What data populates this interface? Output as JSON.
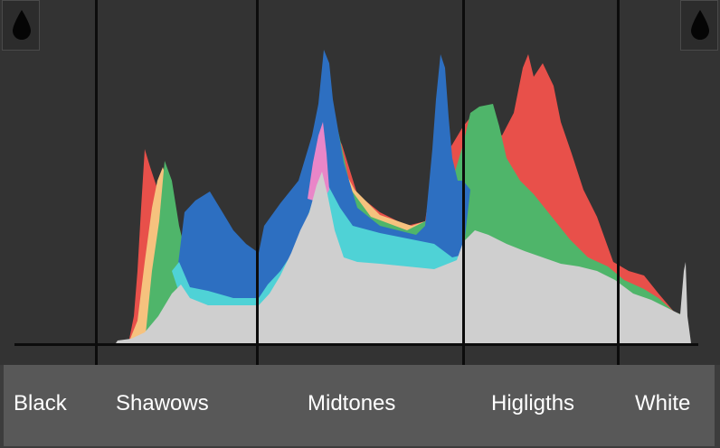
{
  "zones": {
    "black": "Black",
    "shadows": "Shawows",
    "midtones": "Midtones",
    "highlights": "Higligths",
    "white": "White"
  },
  "icons": {
    "left_clip": "water-drop-icon",
    "right_clip": "water-drop-icon"
  },
  "colors": {
    "background": "#333333",
    "luminance": "#cfcfcf",
    "red": "#e8504a",
    "yellow": "#f6c27e",
    "green": "#4fb56a",
    "blue": "#2d6fc1",
    "cyan": "#4fd2d6",
    "magenta": "#e986c8"
  }
}
